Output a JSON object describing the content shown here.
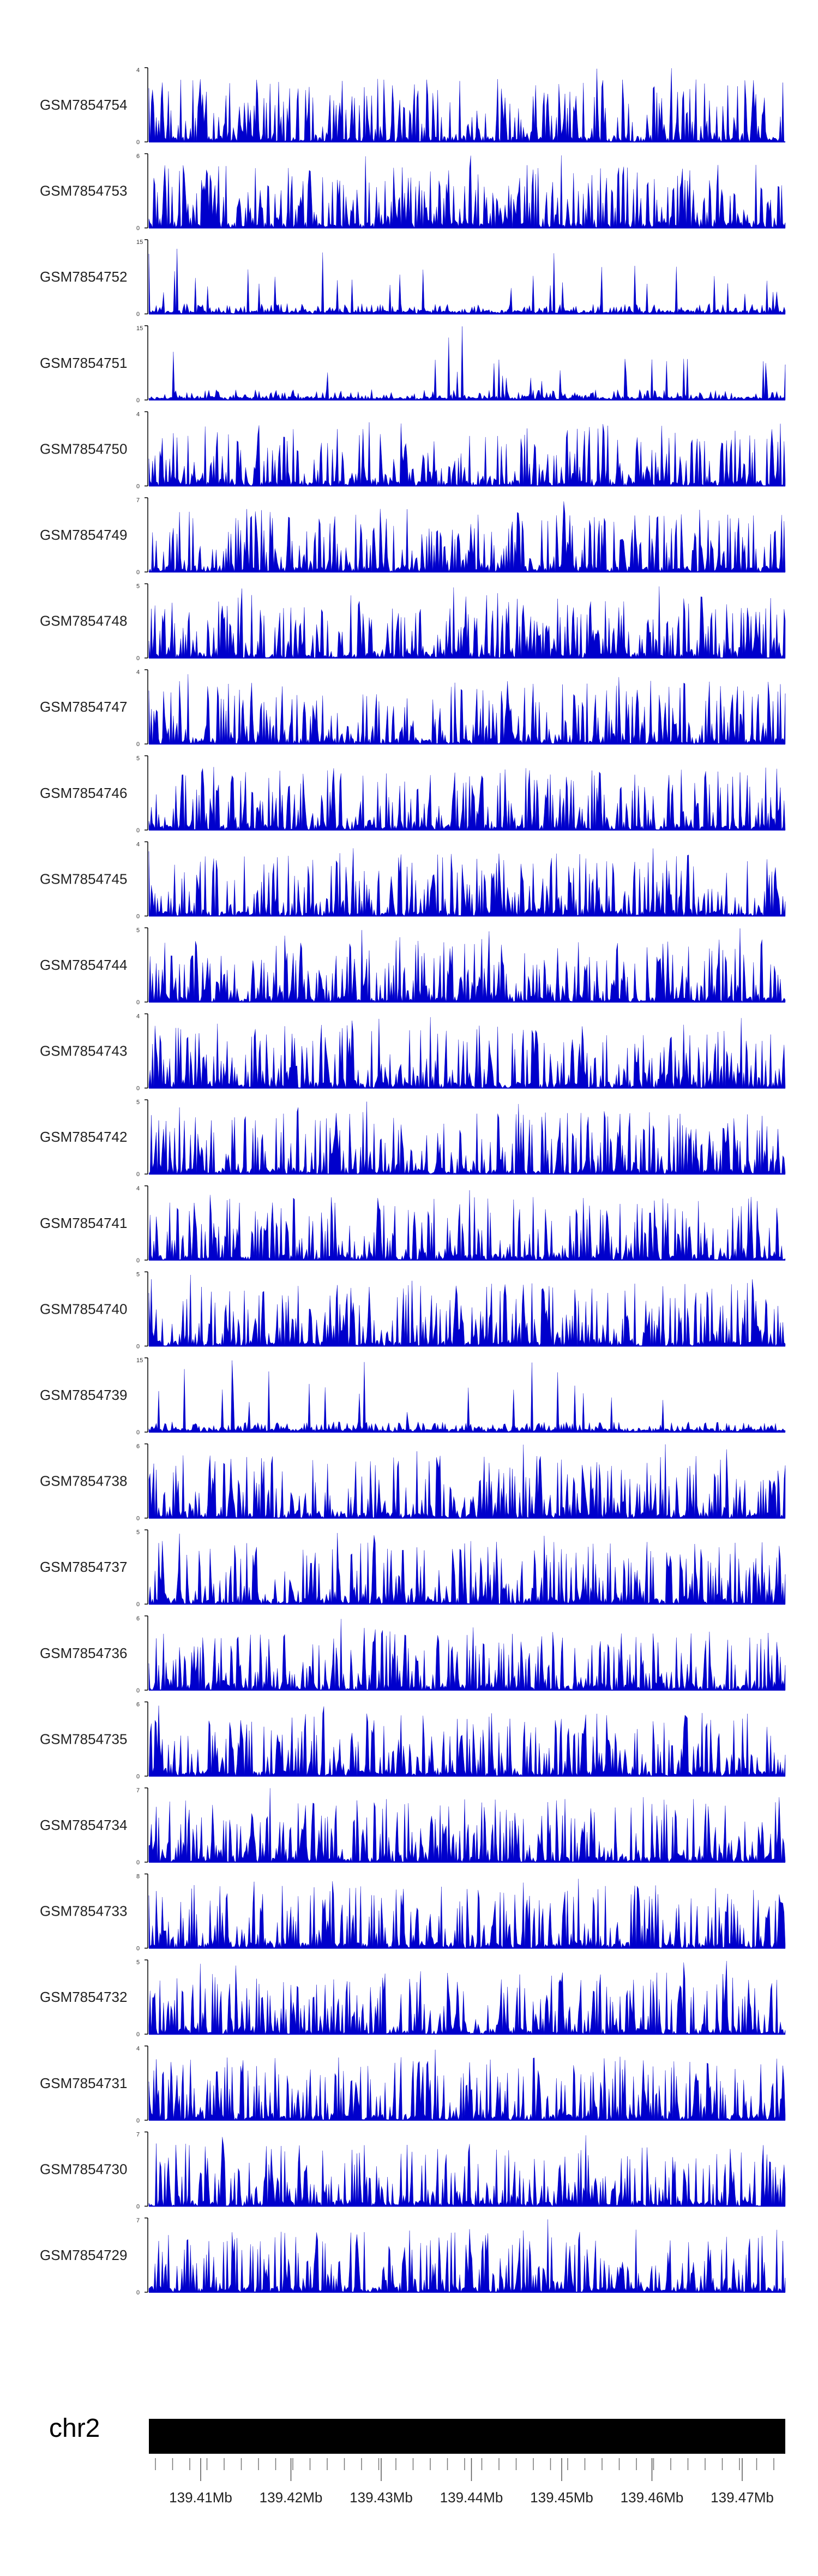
{
  "chart_data": {
    "type": "area",
    "color": "#0000cc",
    "chromosome": "chr2",
    "x_ticks": [
      "139.41Mb",
      "139.42Mb",
      "139.43Mb",
      "139.44Mb",
      "139.45Mb",
      "139.46Mb",
      "139.47Mb"
    ],
    "tracks": [
      {
        "name": "GSM7854754",
        "ymin": "0",
        "ymax": "4"
      },
      {
        "name": "GSM7854753",
        "ymin": "0",
        "ymax": "6"
      },
      {
        "name": "GSM7854752",
        "ymin": "0",
        "ymax": "15"
      },
      {
        "name": "GSM7854751",
        "ymin": "0",
        "ymax": "15"
      },
      {
        "name": "GSM7854750",
        "ymin": "0",
        "ymax": "4"
      },
      {
        "name": "GSM7854749",
        "ymin": "0",
        "ymax": "7"
      },
      {
        "name": "GSM7854748",
        "ymin": "0",
        "ymax": "5"
      },
      {
        "name": "GSM7854747",
        "ymin": "0",
        "ymax": "4"
      },
      {
        "name": "GSM7854746",
        "ymin": "0",
        "ymax": "5"
      },
      {
        "name": "GSM7854745",
        "ymin": "0",
        "ymax": "4"
      },
      {
        "name": "GSM7854744",
        "ymin": "0",
        "ymax": "5"
      },
      {
        "name": "GSM7854743",
        "ymin": "0",
        "ymax": "4"
      },
      {
        "name": "GSM7854742",
        "ymin": "0",
        "ymax": "5"
      },
      {
        "name": "GSM7854741",
        "ymin": "0",
        "ymax": "4"
      },
      {
        "name": "GSM7854740",
        "ymin": "0",
        "ymax": "5"
      },
      {
        "name": "GSM7854739",
        "ymin": "0",
        "ymax": "15"
      },
      {
        "name": "GSM7854738",
        "ymin": "0",
        "ymax": "6"
      },
      {
        "name": "GSM7854737",
        "ymin": "0",
        "ymax": "5"
      },
      {
        "name": "GSM7854736",
        "ymin": "0",
        "ymax": "6"
      },
      {
        "name": "GSM7854735",
        "ymin": "0",
        "ymax": "6"
      },
      {
        "name": "GSM7854734",
        "ymin": "0",
        "ymax": "7"
      },
      {
        "name": "GSM7854733",
        "ymin": "0",
        "ymax": "8"
      },
      {
        "name": "GSM7854732",
        "ymin": "0",
        "ymax": "5"
      },
      {
        "name": "GSM7854731",
        "ymin": "0",
        "ymax": "4"
      },
      {
        "name": "GSM7854730",
        "ymin": "0",
        "ymax": "7"
      },
      {
        "name": "GSM7854729",
        "ymin": "0",
        "ymax": "7"
      }
    ]
  }
}
